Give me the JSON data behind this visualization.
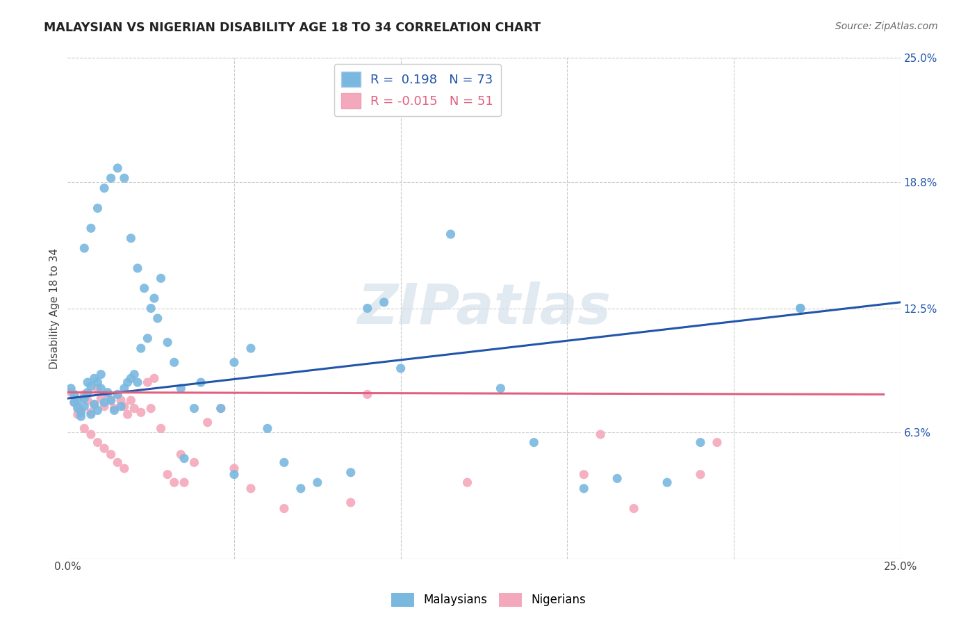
{
  "title": "MALAYSIAN VS NIGERIAN DISABILITY AGE 18 TO 34 CORRELATION CHART",
  "source": "Source: ZipAtlas.com",
  "ylabel": "Disability Age 18 to 34",
  "xlim": [
    0.0,
    0.25
  ],
  "ylim": [
    0.0,
    0.25
  ],
  "ytick_values": [
    0.063,
    0.125,
    0.188,
    0.25
  ],
  "ytick_labels": [
    "6.3%",
    "12.5%",
    "18.8%",
    "25.0%"
  ],
  "r_malaysian": 0.198,
  "n_malaysian": 73,
  "r_nigerian": -0.015,
  "n_nigerian": 51,
  "color_malaysian": "#7ab8e0",
  "color_nigerian": "#f4a8bc",
  "trend_malaysian_color": "#2255aa",
  "trend_nigerian_color": "#e06080",
  "background_color": "#ffffff",
  "grid_color": "#cccccc",
  "watermark": "ZIPatlas",
  "mal_trend_x0": 0.0,
  "mal_trend_y0": 0.08,
  "mal_trend_x1": 0.25,
  "mal_trend_y1": 0.128,
  "nig_trend_x0": 0.0,
  "nig_trend_y0": 0.083,
  "nig_trend_x1": 0.245,
  "nig_trend_y1": 0.082,
  "malaysian_x": [
    0.001,
    0.002,
    0.002,
    0.003,
    0.003,
    0.004,
    0.004,
    0.005,
    0.005,
    0.006,
    0.006,
    0.007,
    0.007,
    0.008,
    0.008,
    0.009,
    0.009,
    0.01,
    0.01,
    0.011,
    0.012,
    0.013,
    0.014,
    0.015,
    0.016,
    0.017,
    0.018,
    0.019,
    0.02,
    0.021,
    0.022,
    0.024,
    0.026,
    0.028,
    0.03,
    0.032,
    0.034,
    0.038,
    0.04,
    0.046,
    0.05,
    0.055,
    0.06,
    0.065,
    0.07,
    0.075,
    0.085,
    0.09,
    0.095,
    0.1,
    0.115,
    0.13,
    0.14,
    0.155,
    0.165,
    0.18,
    0.19,
    0.22,
    0.005,
    0.007,
    0.009,
    0.011,
    0.013,
    0.015,
    0.017,
    0.019,
    0.021,
    0.023,
    0.025,
    0.027,
    0.035,
    0.05,
    0.22
  ],
  "malaysian_y": [
    0.085,
    0.082,
    0.078,
    0.075,
    0.079,
    0.071,
    0.073,
    0.08,
    0.076,
    0.083,
    0.088,
    0.086,
    0.072,
    0.077,
    0.09,
    0.074,
    0.088,
    0.085,
    0.092,
    0.078,
    0.083,
    0.079,
    0.074,
    0.082,
    0.076,
    0.085,
    0.088,
    0.09,
    0.092,
    0.088,
    0.105,
    0.11,
    0.13,
    0.14,
    0.108,
    0.098,
    0.085,
    0.075,
    0.088,
    0.075,
    0.098,
    0.105,
    0.065,
    0.048,
    0.035,
    0.038,
    0.043,
    0.125,
    0.128,
    0.095,
    0.162,
    0.085,
    0.058,
    0.035,
    0.04,
    0.038,
    0.058,
    0.125,
    0.155,
    0.165,
    0.175,
    0.185,
    0.19,
    0.195,
    0.19,
    0.16,
    0.145,
    0.135,
    0.125,
    0.12,
    0.05,
    0.042,
    0.125
  ],
  "nigerian_x": [
    0.001,
    0.002,
    0.003,
    0.003,
    0.004,
    0.005,
    0.006,
    0.007,
    0.008,
    0.009,
    0.01,
    0.011,
    0.012,
    0.013,
    0.014,
    0.015,
    0.016,
    0.017,
    0.018,
    0.019,
    0.02,
    0.022,
    0.024,
    0.026,
    0.028,
    0.03,
    0.032,
    0.034,
    0.038,
    0.042,
    0.046,
    0.05,
    0.055,
    0.065,
    0.085,
    0.09,
    0.12,
    0.155,
    0.16,
    0.17,
    0.19,
    0.195,
    0.005,
    0.007,
    0.009,
    0.011,
    0.013,
    0.015,
    0.017,
    0.025,
    0.035
  ],
  "nigerian_y": [
    0.083,
    0.078,
    0.072,
    0.076,
    0.074,
    0.082,
    0.079,
    0.073,
    0.077,
    0.085,
    0.08,
    0.076,
    0.082,
    0.079,
    0.075,
    0.082,
    0.079,
    0.076,
    0.072,
    0.079,
    0.075,
    0.073,
    0.088,
    0.09,
    0.065,
    0.042,
    0.038,
    0.052,
    0.048,
    0.068,
    0.075,
    0.045,
    0.035,
    0.025,
    0.028,
    0.082,
    0.038,
    0.042,
    0.062,
    0.025,
    0.042,
    0.058,
    0.065,
    0.062,
    0.058,
    0.055,
    0.052,
    0.048,
    0.045,
    0.075,
    0.038
  ]
}
